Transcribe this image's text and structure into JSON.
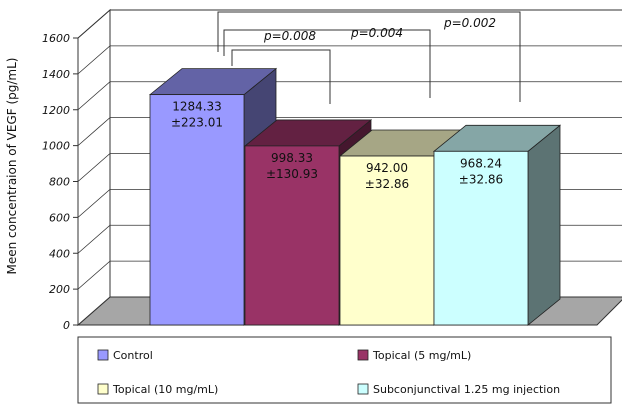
{
  "chart_data": {
    "type": "bar",
    "ylabel": "Meen concentraion of VEGF (pg/mL)",
    "ylim": [
      0,
      1600
    ],
    "yticks": [
      "0",
      "200",
      "400",
      "600",
      "800",
      "1000",
      "1200",
      "1400",
      "1600"
    ],
    "grid": true,
    "legend_position": "bottom",
    "series": [
      {
        "name": "Control",
        "value": 1284.33,
        "label_value": "1284.33",
        "label_sd": "±223.01",
        "color": "#9999ff"
      },
      {
        "name": "Topical (5 mg/mL)",
        "value": 998.33,
        "label_value": "998.33",
        "label_sd": "±130.93",
        "color": "#993366"
      },
      {
        "name": "Topical (10 mg/mL)",
        "value": 942.0,
        "label_value": "942.00",
        "label_sd": "±32.86",
        "color": "#ffffcc"
      },
      {
        "name": "Subconjunctival 1.25 mg injection",
        "value": 968.24,
        "label_value": "968.24",
        "label_sd": "±32.86",
        "color": "#ccffff"
      }
    ],
    "annotations": [
      "p=0.008",
      "p=0.004",
      "p=0.002"
    ]
  }
}
